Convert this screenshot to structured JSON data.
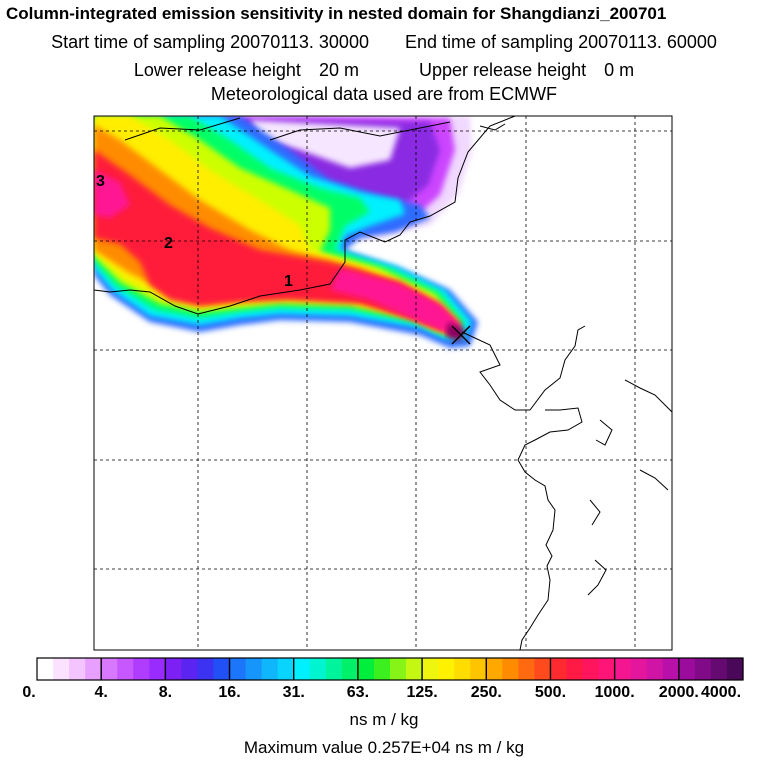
{
  "title": "Column-integrated emission sensitivity in nested domain for Shangdianzi_200701",
  "sampling": {
    "start_label": "Start time of sampling",
    "start_value": "20070113. 30000",
    "end_label": "End time of sampling",
    "end_value": "20070113. 60000"
  },
  "release": {
    "lower_label": "Lower release height",
    "lower_value": "20 m",
    "upper_label": "Upper release height",
    "upper_value": "0 m"
  },
  "met_line": "Meteorological data used are from ECMWF",
  "map": {
    "labels": [
      "1",
      "2",
      "3"
    ],
    "colors": {
      "white": "#ffffff",
      "lavender": "#f0d8ff",
      "magenta": "#cc44ff",
      "purple": "#8a2be2",
      "blue": "#2f6cff",
      "cyan": "#00f0ff",
      "green": "#00ff66",
      "yellowgreen": "#ccff00",
      "yellow": "#ffee00",
      "orange": "#ff8c00",
      "red": "#ff1a3a",
      "hotpink": "#ff1493",
      "darkmagenta": "#8b0060"
    }
  },
  "colorbar": {
    "tick_labels": [
      "0.",
      "4.",
      "8.",
      "16.",
      "31.",
      "63.",
      "125.",
      "250.",
      "500.",
      "1000.",
      "2000.",
      "4000."
    ],
    "units": "ns m / kg",
    "colors": [
      "#ffffff",
      "#fbe3ff",
      "#f3c4ff",
      "#e7a0ff",
      "#d878ff",
      "#c757ff",
      "#b03cff",
      "#9a2bff",
      "#7d20f4",
      "#5b24f0",
      "#3c33f2",
      "#2050f6",
      "#1c76fa",
      "#1696fb",
      "#10b6fc",
      "#08d4fe",
      "#00f0ff",
      "#00f4d0",
      "#00f49c",
      "#00f06a",
      "#00ee3c",
      "#3cf020",
      "#86f416",
      "#c4f812",
      "#eef610",
      "#fff200",
      "#ffdd00",
      "#ffc400",
      "#ffa800",
      "#ff8c00",
      "#ff6a10",
      "#ff4a1e",
      "#ff2a30",
      "#ff1a46",
      "#ff145e",
      "#ff1478",
      "#f41690",
      "#e4169e",
      "#d014a6",
      "#b810a8",
      "#9c0c9c",
      "#800a88",
      "#640a70",
      "#4a0858"
    ]
  },
  "max_label": "Maximum value",
  "max_value": "0.257E+04",
  "max_units": "ns m / kg"
}
